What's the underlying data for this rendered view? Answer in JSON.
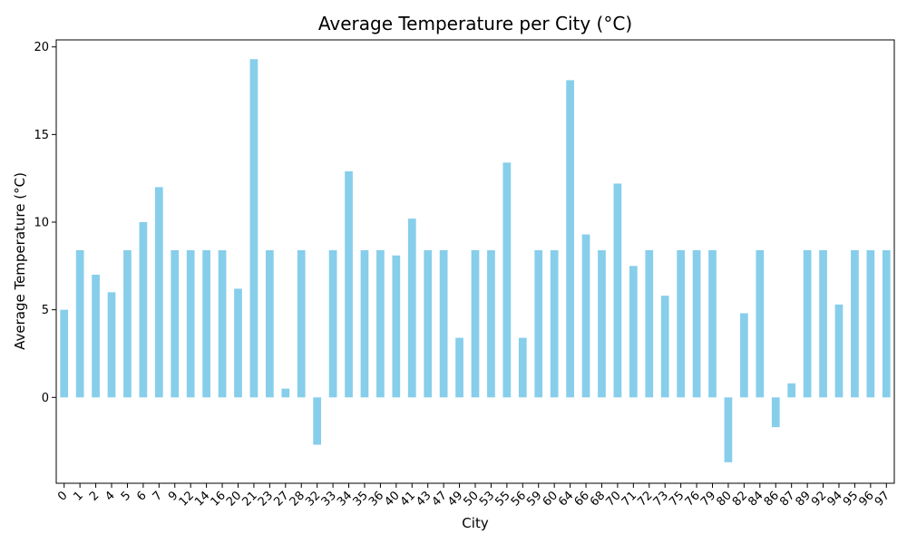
{
  "chart_data": {
    "type": "bar",
    "title": "Average Temperature per City (°C)",
    "xlabel": "City",
    "ylabel": "Average Temperature (°C)",
    "ylim": [
      -4.9,
      20.4
    ],
    "yticks": [
      0,
      5,
      10,
      15,
      20
    ],
    "grid": false,
    "bar_color": "#87ceeb",
    "categories": [
      "0",
      "1",
      "2",
      "4",
      "5",
      "6",
      "7",
      "9",
      "12",
      "14",
      "16",
      "20",
      "21",
      "23",
      "27",
      "28",
      "32",
      "33",
      "34",
      "35",
      "36",
      "40",
      "41",
      "43",
      "47",
      "49",
      "50",
      "53",
      "55",
      "56",
      "59",
      "60",
      "64",
      "66",
      "68",
      "70",
      "71",
      "72",
      "73",
      "75",
      "76",
      "79",
      "80",
      "82",
      "84",
      "86",
      "87",
      "89",
      "92",
      "94",
      "95",
      "96",
      "97"
    ],
    "values": [
      5.0,
      8.4,
      7.0,
      6.0,
      8.4,
      10.0,
      12.0,
      8.4,
      8.4,
      8.4,
      8.4,
      6.2,
      19.3,
      8.4,
      0.5,
      8.4,
      -2.7,
      8.4,
      12.9,
      8.4,
      8.4,
      8.1,
      10.2,
      8.4,
      8.4,
      3.4,
      8.4,
      8.4,
      13.4,
      3.4,
      8.4,
      8.4,
      18.1,
      9.3,
      8.4,
      12.2,
      7.5,
      8.4,
      5.8,
      8.4,
      8.4,
      8.4,
      -3.7,
      4.8,
      8.4,
      -1.7,
      0.8,
      8.4,
      8.4,
      5.3,
      8.4,
      8.4,
      8.4
    ]
  }
}
